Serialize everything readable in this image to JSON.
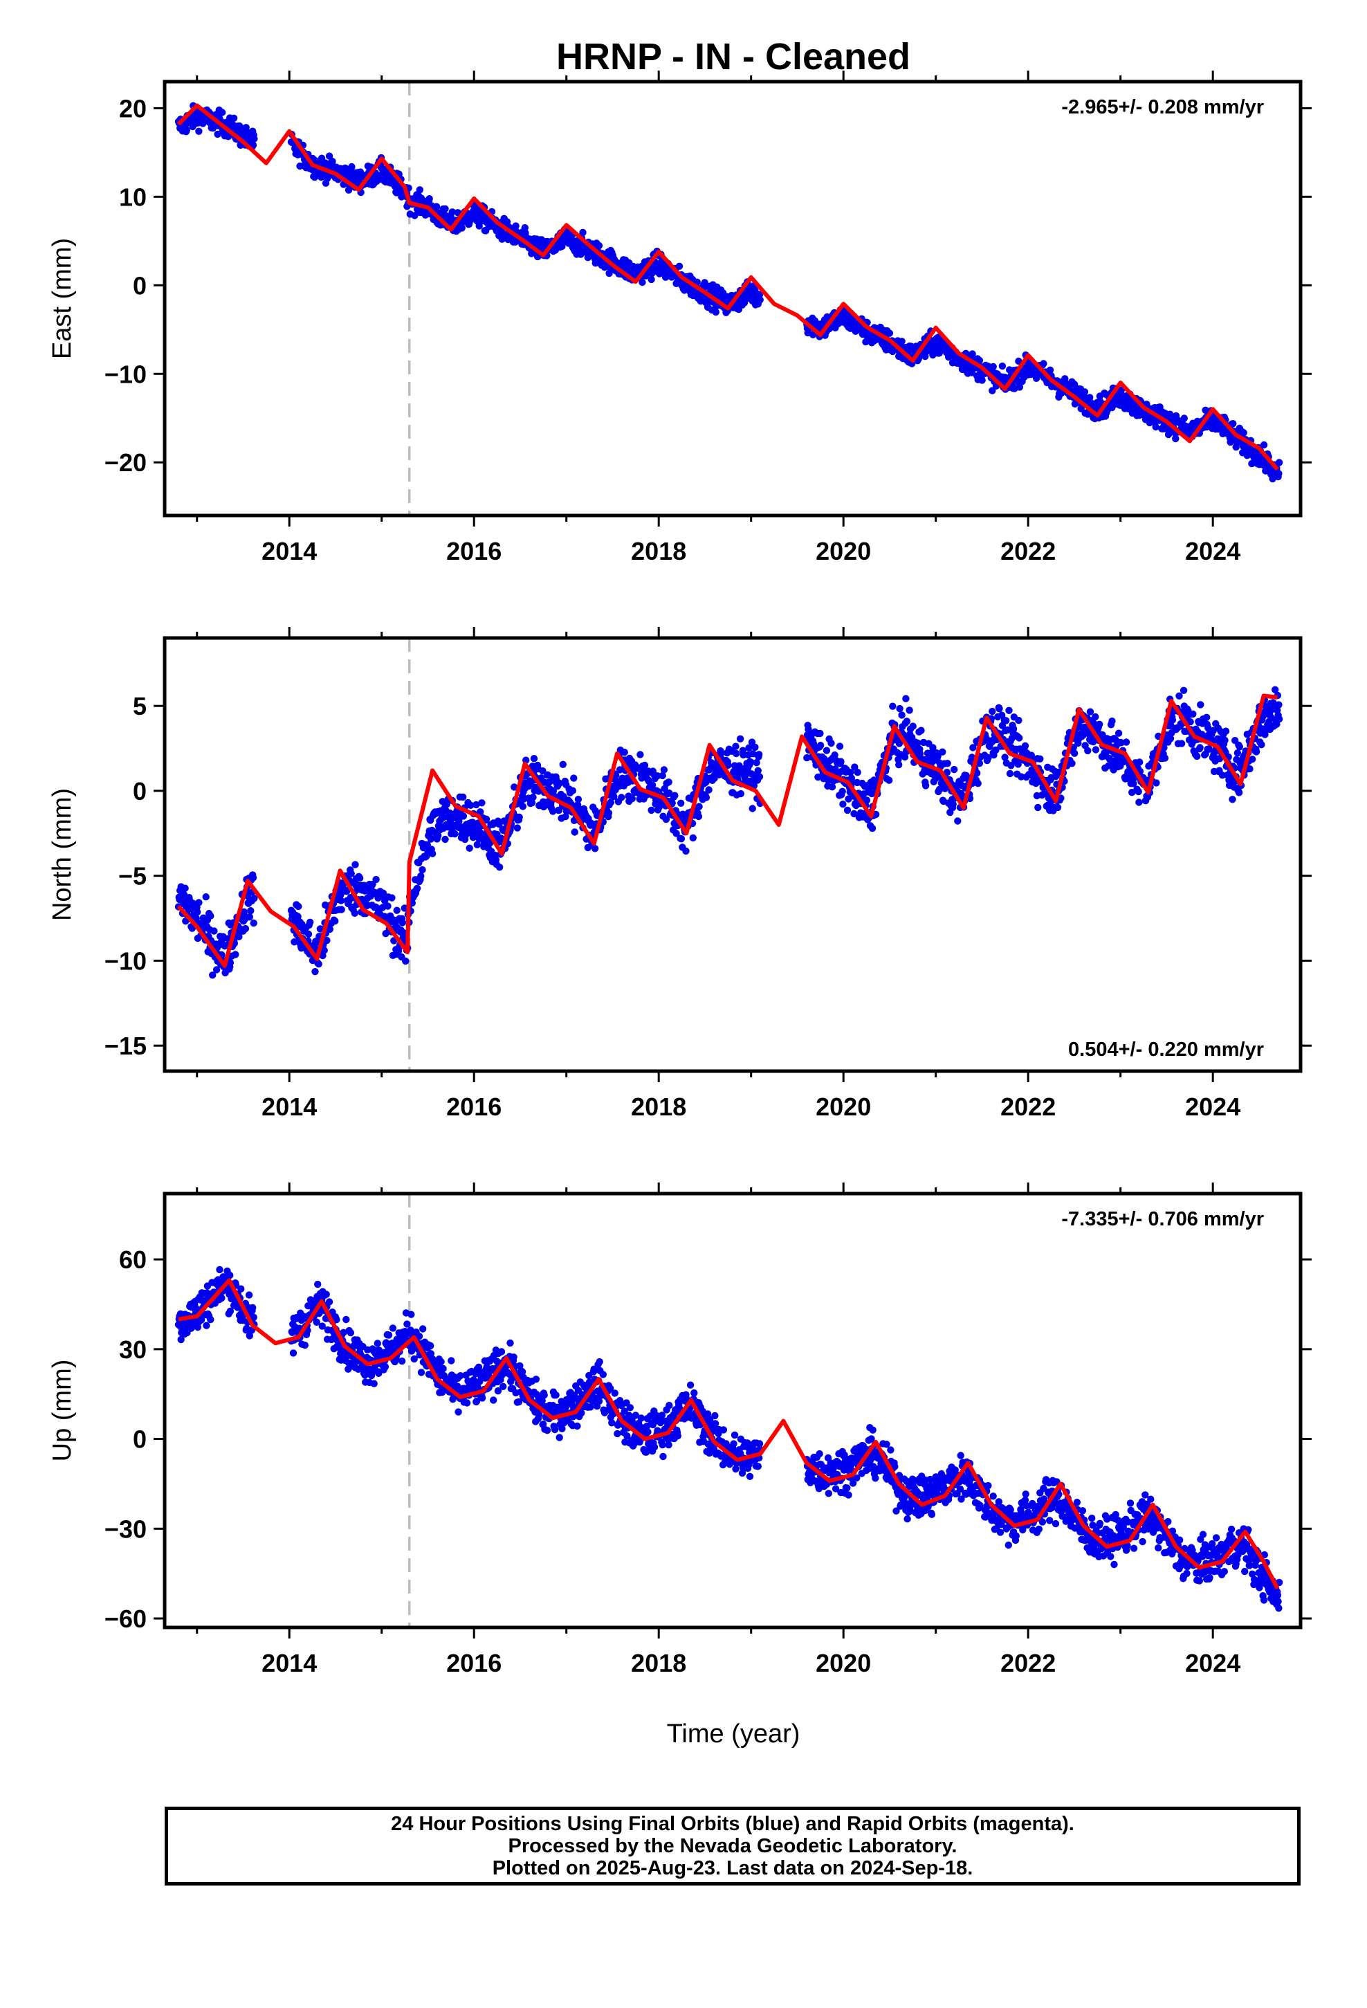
{
  "title": "HRNP  - IN - Cleaned",
  "xaxis": {
    "label": "Time (year)",
    "range": [
      2012.65,
      2024.95
    ],
    "ticks": [
      2014,
      2016,
      2018,
      2020,
      2022,
      2024
    ]
  },
  "footer": {
    "line1": "24 Hour Positions Using Final Orbits (blue) and Rapid Orbits (magenta).",
    "line2": "Processed by the Nevada Geodetic Laboratory.",
    "line3": "Plotted on 2025-Aug-23. Last data on 2024-Sep-18."
  },
  "colors": {
    "final_orbits": "#0000ee",
    "model": "#ff0000",
    "equipment_change": "#bdbdbd"
  },
  "chart_data": [
    {
      "type": "scatter",
      "component": "East",
      "ylabel": "East (mm)",
      "ylim": [
        -26,
        23
      ],
      "yticks": [
        -20,
        -10,
        0,
        10,
        20
      ],
      "rate_text": "-2.965+/- 0.208 mm/yr",
      "rate_position": "top-right",
      "equipment_change_year": 2015.3,
      "data_gap": [
        2019.1,
        2019.6
      ],
      "series": [
        {
          "name": "Final Orbits (blue)",
          "x": [
            2012.8,
            2013.3,
            2013.8,
            2014.3,
            2014.8,
            2015.3,
            2015.8,
            2016.3,
            2016.8,
            2017.3,
            2017.8,
            2018.3,
            2018.8,
            2019.7,
            2020.2,
            2020.7,
            2021.2,
            2021.7,
            2022.2,
            2022.7,
            2023.2,
            2023.7,
            2024.2,
            2024.7
          ],
          "y": [
            17.5,
            18.5,
            16,
            13.5,
            12.5,
            10,
            7,
            6,
            4,
            3.5,
            2,
            0,
            -2,
            -4,
            -5.5,
            -7.5,
            -8.5,
            -10.5,
            -10.5,
            -13,
            -14.5,
            -15.5,
            -17,
            -22
          ]
        },
        {
          "name": "Model",
          "x": [
            2012.8,
            2013.0,
            2013.5,
            2013.75,
            2014.0,
            2014.25,
            2014.5,
            2014.75,
            2015.0,
            2015.25,
            2015.3,
            2015.5,
            2015.75,
            2016.0,
            2016.25,
            2016.5,
            2016.75,
            2017.0,
            2017.25,
            2017.5,
            2017.75,
            2018.0,
            2018.25,
            2018.5,
            2018.75,
            2019.0,
            2019.25,
            2019.5,
            2019.75,
            2020.0,
            2020.25,
            2020.5,
            2020.75,
            2021.0,
            2021.25,
            2021.5,
            2021.75,
            2022.0,
            2022.25,
            2022.5,
            2022.75,
            2023.0,
            2023.25,
            2023.5,
            2023.75,
            2024.0,
            2024.25,
            2024.5,
            2024.7
          ],
          "y": [
            18.2,
            20.3,
            16.2,
            13.8,
            17.4,
            13.6,
            12.6,
            10.8,
            14.3,
            11.1,
            9.3,
            8.8,
            6.3,
            9.8,
            7.1,
            5.3,
            3.4,
            6.8,
            4.5,
            2.3,
            0.4,
            3.8,
            0.9,
            -0.8,
            -2.6,
            0.9,
            -2.1,
            -3.4,
            -5.6,
            -2.1,
            -4.7,
            -6.2,
            -8.5,
            -4.8,
            -7.7,
            -9.3,
            -11.7,
            -7.9,
            -10.7,
            -12.6,
            -14.7,
            -11.0,
            -13.8,
            -15.4,
            -17.6,
            -14.0,
            -16.9,
            -18.4,
            -20.8
          ]
        }
      ]
    },
    {
      "type": "scatter",
      "component": "North",
      "ylabel": "North (mm)",
      "ylim": [
        -16.5,
        9
      ],
      "yticks": [
        -15,
        -10,
        -5,
        0,
        5
      ],
      "rate_text": "0.504+/- 0.220 mm/yr",
      "rate_position": "bottom-right",
      "equipment_change_year": 2015.3,
      "data_gap": [
        2019.1,
        2019.6
      ],
      "series": [
        {
          "name": "Final Orbits (blue)",
          "x": [
            2012.8,
            2013.3,
            2013.8,
            2014.3,
            2014.8,
            2015.3,
            2015.8,
            2016.3,
            2016.8,
            2017.3,
            2017.8,
            2018.3,
            2018.8,
            2019.7,
            2020.2,
            2020.7,
            2021.2,
            2021.7,
            2022.2,
            2022.7,
            2023.2,
            2023.7,
            2024.2,
            2024.7
          ],
          "y": [
            -5.5,
            -9.5,
            -5,
            -9.5,
            -4.5,
            -9,
            -2,
            -3,
            1,
            -2,
            1.5,
            -2,
            2,
            3,
            -1,
            4,
            -0.5,
            4,
            0,
            4,
            0,
            4.5,
            1.5,
            4
          ]
        },
        {
          "name": "Model",
          "x": [
            2012.8,
            2013.0,
            2013.3,
            2013.55,
            2013.8,
            2014.05,
            2014.3,
            2014.55,
            2014.8,
            2015.05,
            2015.28,
            2015.3,
            2015.55,
            2015.8,
            2016.05,
            2016.3,
            2016.55,
            2016.8,
            2017.05,
            2017.3,
            2017.55,
            2017.8,
            2018.05,
            2018.3,
            2018.55,
            2018.8,
            2019.05,
            2019.3,
            2019.55,
            2019.8,
            2020.05,
            2020.3,
            2020.55,
            2020.8,
            2021.05,
            2021.3,
            2021.55,
            2021.8,
            2022.05,
            2022.3,
            2022.55,
            2022.8,
            2023.05,
            2023.3,
            2023.55,
            2023.8,
            2024.05,
            2024.3,
            2024.55,
            2024.7
          ],
          "y": [
            -6.8,
            -8.0,
            -10.3,
            -5.3,
            -7.1,
            -8.0,
            -9.9,
            -4.7,
            -7.0,
            -7.8,
            -9.5,
            -4.2,
            1.2,
            -0.9,
            -1.5,
            -3.7,
            1.6,
            -0.3,
            -1.0,
            -3.1,
            2.2,
            0.1,
            -0.4,
            -2.5,
            2.7,
            0.6,
            0.0,
            -2.0,
            3.2,
            1.1,
            0.5,
            -1.5,
            3.8,
            1.7,
            1.2,
            -1.0,
            4.3,
            2.2,
            1.7,
            -0.6,
            4.8,
            2.7,
            2.2,
            -0.1,
            5.3,
            3.2,
            2.6,
            0.4,
            5.6,
            5.5
          ]
        }
      ]
    },
    {
      "type": "scatter",
      "component": "Up",
      "ylabel": "Up (mm)",
      "ylim": [
        -63,
        82
      ],
      "yticks": [
        -60,
        -30,
        0,
        30,
        60
      ],
      "rate_text": "-7.335+/- 0.706 mm/yr",
      "rate_position": "top-right",
      "equipment_change_year": 2015.3,
      "data_gap": [
        2019.1,
        2019.6
      ],
      "series": [
        {
          "name": "Final Orbits (blue)",
          "x": [
            2012.8,
            2013.3,
            2013.8,
            2014.3,
            2014.8,
            2015.3,
            2015.8,
            2016.3,
            2016.8,
            2017.3,
            2017.8,
            2018.3,
            2018.8,
            2019.7,
            2020.2,
            2020.7,
            2021.2,
            2021.7,
            2022.2,
            2022.7,
            2023.2,
            2023.7,
            2024.2,
            2024.7
          ],
          "y": [
            38,
            52,
            30,
            45,
            25,
            37,
            15,
            25,
            8,
            18,
            0,
            10,
            -5,
            -10,
            -5,
            -20,
            -12,
            -28,
            -20,
            -35,
            -25,
            -43,
            -35,
            -58
          ]
        },
        {
          "name": "Model",
          "x": [
            2012.8,
            2013.0,
            2013.35,
            2013.6,
            2013.85,
            2014.1,
            2014.35,
            2014.6,
            2014.85,
            2015.1,
            2015.35,
            2015.6,
            2015.85,
            2016.1,
            2016.35,
            2016.6,
            2016.85,
            2017.1,
            2017.35,
            2017.6,
            2017.85,
            2018.1,
            2018.35,
            2018.6,
            2018.85,
            2019.1,
            2019.35,
            2019.6,
            2019.85,
            2020.1,
            2020.35,
            2020.6,
            2020.85,
            2021.1,
            2021.35,
            2021.6,
            2021.85,
            2022.1,
            2022.35,
            2022.6,
            2022.85,
            2023.1,
            2023.35,
            2023.6,
            2023.85,
            2024.1,
            2024.35,
            2024.55,
            2024.7
          ],
          "y": [
            40,
            41,
            53,
            38,
            32,
            34,
            46,
            31,
            25,
            27,
            34,
            20,
            14,
            16,
            27,
            13,
            7,
            9,
            20,
            6,
            0,
            2,
            13,
            -1,
            -7,
            -5,
            6,
            -8,
            -14,
            -12,
            -1,
            -15,
            -22,
            -19,
            -8,
            -22,
            -29,
            -27,
            -15,
            -29,
            -36,
            -34,
            -22,
            -36,
            -43,
            -41,
            -31,
            -41,
            -50
          ]
        }
      ]
    }
  ]
}
